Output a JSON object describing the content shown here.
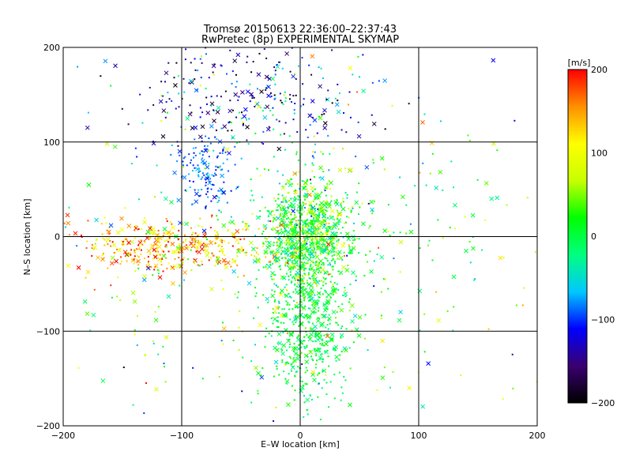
{
  "chart_data": {
    "type": "scatter",
    "title_line1": "Tromsø 20150613 22:36:00–22:37:43",
    "title_line2": "RwPretec (8p) EXPERIMENTAL SKYMAP",
    "xlabel": "E–W location [km]",
    "ylabel": "N–S location [km]",
    "xlim": [
      -200,
      200
    ],
    "ylim": [
      -200,
      200
    ],
    "xticks": [
      -200,
      -100,
      0,
      100,
      200
    ],
    "yticks": [
      -200,
      -100,
      0,
      100,
      200
    ],
    "grid": true,
    "colorbar": {
      "label": "[m/s]",
      "range": [
        -200,
        200
      ],
      "ticks": [
        200,
        100,
        0,
        -100,
        -200
      ],
      "colormap": [
        "#000000",
        "#3a0070",
        "#0000ff",
        "#00c8ff",
        "#00ff80",
        "#00ff00",
        "#c8ff00",
        "#ffff00",
        "#ff9000",
        "#ff0000"
      ]
    },
    "markers": [
      "dot",
      "x"
    ],
    "clusters": [
      {
        "x": 5,
        "y": 0,
        "sx": 18,
        "sy": 30,
        "n": 950,
        "v": 20,
        "vs": 45
      },
      {
        "x": 5,
        "y": -90,
        "sx": 18,
        "sy": 45,
        "n": 520,
        "v": 0,
        "vs": 20
      },
      {
        "x": -110,
        "y": -10,
        "sx": 45,
        "sy": 14,
        "n": 420,
        "v": 140,
        "vs": 45
      },
      {
        "x": -40,
        "y": 150,
        "sx": 55,
        "sy": 30,
        "n": 260,
        "v": -130,
        "vs": 50
      },
      {
        "x": -80,
        "y": 70,
        "sx": 12,
        "sy": 22,
        "n": 150,
        "v": -90,
        "vs": 20
      },
      {
        "x": 0,
        "y": 0,
        "sx": 110,
        "sy": 110,
        "n": 500,
        "v": 15,
        "vs": 70
      }
    ]
  }
}
